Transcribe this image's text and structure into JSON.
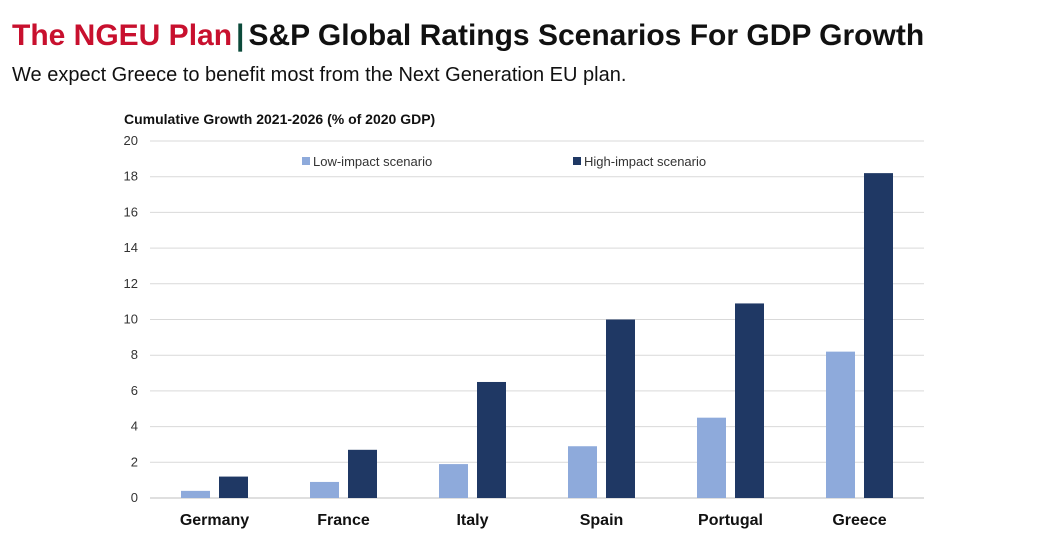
{
  "header": {
    "title_accent": "The NGEU Plan",
    "separator": "|",
    "title_main": "S&P Global Ratings Scenarios For GDP Growth",
    "subtitle": "We expect Greece to benefit most from the Next Generation EU plan."
  },
  "chart_data": {
    "type": "bar",
    "title": "Cumulative Growth 2021-2026 (% of 2020 GDP)",
    "categories": [
      "Germany",
      "France",
      "Italy",
      "Spain",
      "Portugal",
      "Greece"
    ],
    "series": [
      {
        "name": "Low-impact scenario",
        "values": [
          0.4,
          0.9,
          1.9,
          2.9,
          4.5,
          8.2
        ],
        "color": "#8eaadb"
      },
      {
        "name": "High-impact scenario",
        "values": [
          1.2,
          2.7,
          6.5,
          10.0,
          10.9,
          18.2
        ],
        "color": "#1f3864"
      }
    ],
    "ylim": [
      0,
      20
    ],
    "yticks": [
      0,
      2,
      4,
      6,
      8,
      10,
      12,
      14,
      16,
      18,
      20
    ],
    "grid": true,
    "legend_position": "top"
  }
}
